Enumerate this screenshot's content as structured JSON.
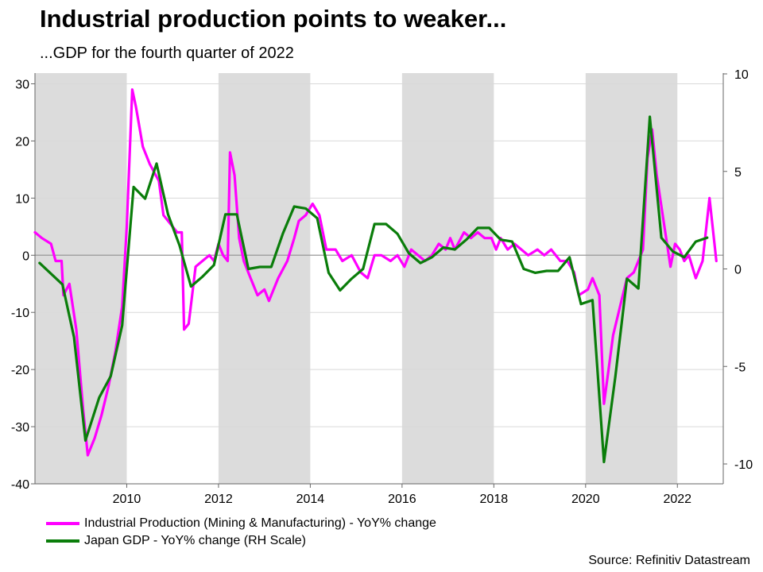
{
  "title": "Industrial production points to weaker...",
  "subtitle": "...GDP for the fourth quarter of 2022",
  "source": "Source: Refinitiv Datastream",
  "colors": {
    "ip": "#ff00ff",
    "gdp": "#0a7d0a",
    "shade": "#dcdcdc",
    "grid": "#d9d9d9"
  },
  "chart_data": {
    "type": "line",
    "title": "Industrial production points to weaker...",
    "subtitle": "...GDP for the fourth quarter of 2022",
    "x_range": [
      2008.0,
      2023.0
    ],
    "x_ticks": [
      2010,
      2012,
      2014,
      2016,
      2018,
      2020,
      2022
    ],
    "x_tick_labels": [
      "2010",
      "2012",
      "2014",
      "2016",
      "2018",
      "2020",
      "2022"
    ],
    "left_axis": {
      "range": [
        -40,
        32
      ],
      "ticks": [
        30,
        20,
        10,
        0,
        -10,
        -20,
        -30,
        -40
      ],
      "tick_labels": [
        "30",
        "20",
        "10",
        "0",
        "-10",
        "-20",
        "-30",
        "-40"
      ]
    },
    "right_axis": {
      "range": [
        -11,
        10
      ],
      "ticks": [
        10,
        5,
        0,
        -5,
        -10
      ],
      "tick_labels": [
        "10",
        "5",
        "0",
        "-5",
        "-10"
      ]
    },
    "shaded_periods": [
      [
        2008,
        2010
      ],
      [
        2012,
        2014
      ],
      [
        2016,
        2018
      ],
      [
        2020,
        2022
      ]
    ],
    "series": [
      {
        "name": "Industrial Production (Mining & Manufacturing) - YoY% change",
        "axis": "left",
        "points": [
          [
            2008.0,
            4
          ],
          [
            2008.15,
            3
          ],
          [
            2008.35,
            2
          ],
          [
            2008.45,
            -1
          ],
          [
            2008.58,
            -1
          ],
          [
            2008.62,
            -7
          ],
          [
            2008.75,
            -5
          ],
          [
            2008.9,
            -13
          ],
          [
            2009.05,
            -27
          ],
          [
            2009.15,
            -35
          ],
          [
            2009.3,
            -32
          ],
          [
            2009.45,
            -28
          ],
          [
            2009.6,
            -23
          ],
          [
            2009.75,
            -17
          ],
          [
            2009.9,
            -9
          ],
          [
            2010.0,
            5
          ],
          [
            2010.12,
            29
          ],
          [
            2010.2,
            26
          ],
          [
            2010.35,
            19
          ],
          [
            2010.5,
            16
          ],
          [
            2010.7,
            13
          ],
          [
            2010.8,
            7
          ],
          [
            2011.0,
            5
          ],
          [
            2011.1,
            4
          ],
          [
            2011.2,
            4
          ],
          [
            2011.25,
            -13
          ],
          [
            2011.35,
            -12
          ],
          [
            2011.5,
            -2
          ],
          [
            2011.65,
            -1
          ],
          [
            2011.8,
            0
          ],
          [
            2011.9,
            -1
          ],
          [
            2012.0,
            2
          ],
          [
            2012.1,
            0
          ],
          [
            2012.2,
            -1
          ],
          [
            2012.25,
            18
          ],
          [
            2012.35,
            14
          ],
          [
            2012.45,
            3
          ],
          [
            2012.55,
            -1
          ],
          [
            2012.7,
            -4
          ],
          [
            2012.85,
            -7
          ],
          [
            2013.0,
            -6
          ],
          [
            2013.1,
            -8
          ],
          [
            2013.3,
            -4
          ],
          [
            2013.5,
            -1
          ],
          [
            2013.65,
            3
          ],
          [
            2013.75,
            6
          ],
          [
            2013.9,
            7
          ],
          [
            2014.05,
            9
          ],
          [
            2014.2,
            7
          ],
          [
            2014.35,
            1
          ],
          [
            2014.55,
            1
          ],
          [
            2014.7,
            -1
          ],
          [
            2014.9,
            0
          ],
          [
            2015.1,
            -3
          ],
          [
            2015.25,
            -4
          ],
          [
            2015.4,
            0
          ],
          [
            2015.55,
            0
          ],
          [
            2015.75,
            -1
          ],
          [
            2015.9,
            0
          ],
          [
            2016.05,
            -2
          ],
          [
            2016.2,
            1
          ],
          [
            2016.35,
            0
          ],
          [
            2016.5,
            -1
          ],
          [
            2016.65,
            0
          ],
          [
            2016.8,
            2
          ],
          [
            2016.95,
            1
          ],
          [
            2017.05,
            3
          ],
          [
            2017.15,
            1
          ],
          [
            2017.35,
            4
          ],
          [
            2017.5,
            3
          ],
          [
            2017.65,
            4
          ],
          [
            2017.8,
            3
          ],
          [
            2017.95,
            3
          ],
          [
            2018.05,
            1
          ],
          [
            2018.15,
            3
          ],
          [
            2018.3,
            1
          ],
          [
            2018.45,
            2
          ],
          [
            2018.6,
            1
          ],
          [
            2018.75,
            0
          ],
          [
            2018.95,
            1
          ],
          [
            2019.1,
            0
          ],
          [
            2019.25,
            1
          ],
          [
            2019.45,
            -1
          ],
          [
            2019.6,
            -1
          ],
          [
            2019.75,
            -3
          ],
          [
            2019.85,
            -7
          ],
          [
            2020.05,
            -6
          ],
          [
            2020.15,
            -4
          ],
          [
            2020.3,
            -7
          ],
          [
            2020.4,
            -26
          ],
          [
            2020.5,
            -20
          ],
          [
            2020.6,
            -14
          ],
          [
            2020.75,
            -9
          ],
          [
            2020.9,
            -4
          ],
          [
            2021.05,
            -3
          ],
          [
            2021.25,
            1
          ],
          [
            2021.35,
            17
          ],
          [
            2021.45,
            22
          ],
          [
            2021.55,
            14
          ],
          [
            2021.7,
            6
          ],
          [
            2021.85,
            -2
          ],
          [
            2021.95,
            2
          ],
          [
            2022.05,
            1
          ],
          [
            2022.15,
            -1
          ],
          [
            2022.25,
            0
          ],
          [
            2022.4,
            -4
          ],
          [
            2022.55,
            -1
          ],
          [
            2022.7,
            10
          ],
          [
            2022.85,
            -1
          ]
        ]
      },
      {
        "name": "Japan GDP - YoY% change (RH Scale)",
        "axis": "right",
        "points": [
          [
            2008.1,
            0.3
          ],
          [
            2008.6,
            -0.8
          ],
          [
            2008.85,
            -3.5
          ],
          [
            2009.1,
            -8.8
          ],
          [
            2009.4,
            -6.6
          ],
          [
            2009.65,
            -5.5
          ],
          [
            2009.9,
            -2.9
          ],
          [
            2010.15,
            4.2
          ],
          [
            2010.4,
            3.6
          ],
          [
            2010.65,
            5.4
          ],
          [
            2010.9,
            2.8
          ],
          [
            2011.15,
            1.2
          ],
          [
            2011.4,
            -0.9
          ],
          [
            2011.65,
            -0.4
          ],
          [
            2011.9,
            0.2
          ],
          [
            2012.15,
            2.8
          ],
          [
            2012.4,
            2.8
          ],
          [
            2012.65,
            0.0
          ],
          [
            2012.9,
            0.1
          ],
          [
            2013.15,
            0.1
          ],
          [
            2013.4,
            1.8
          ],
          [
            2013.65,
            3.2
          ],
          [
            2013.9,
            3.1
          ],
          [
            2014.15,
            2.6
          ],
          [
            2014.4,
            -0.2
          ],
          [
            2014.65,
            -1.1
          ],
          [
            2014.9,
            -0.5
          ],
          [
            2015.15,
            0.0
          ],
          [
            2015.4,
            2.3
          ],
          [
            2015.65,
            2.3
          ],
          [
            2015.9,
            1.8
          ],
          [
            2016.15,
            0.8
          ],
          [
            2016.4,
            0.3
          ],
          [
            2016.65,
            0.6
          ],
          [
            2016.9,
            1.1
          ],
          [
            2017.15,
            1.0
          ],
          [
            2017.4,
            1.5
          ],
          [
            2017.65,
            2.1
          ],
          [
            2017.9,
            2.1
          ],
          [
            2018.15,
            1.5
          ],
          [
            2018.4,
            1.4
          ],
          [
            2018.65,
            0.0
          ],
          [
            2018.9,
            -0.2
          ],
          [
            2019.15,
            -0.1
          ],
          [
            2019.4,
            -0.1
          ],
          [
            2019.65,
            0.6
          ],
          [
            2019.9,
            -1.8
          ],
          [
            2020.15,
            -1.6
          ],
          [
            2020.4,
            -9.9
          ],
          [
            2020.65,
            -5.5
          ],
          [
            2020.9,
            -0.5
          ],
          [
            2021.15,
            -1.0
          ],
          [
            2021.4,
            7.8
          ],
          [
            2021.65,
            1.6
          ],
          [
            2021.9,
            0.9
          ],
          [
            2022.15,
            0.6
          ],
          [
            2022.4,
            1.4
          ],
          [
            2022.65,
            1.6
          ]
        ]
      }
    ]
  }
}
